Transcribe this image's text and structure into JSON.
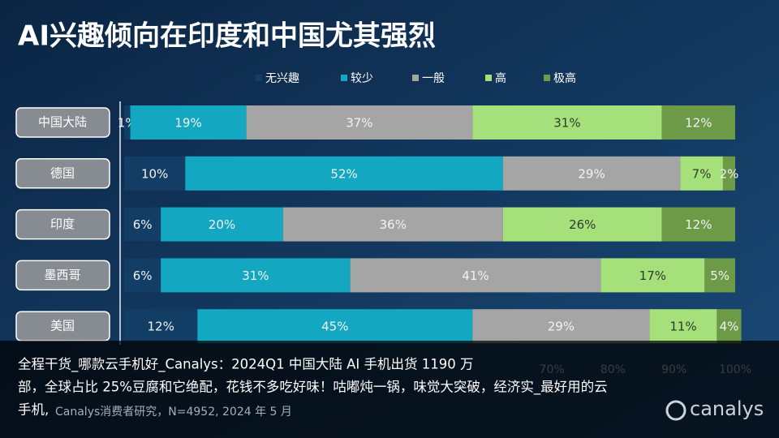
{
  "chart_data": {
    "type": "stacked_barh",
    "title": "AI兴趣倾向在印度和中国尤其强烈",
    "categories": [
      "中国大陆",
      "德国",
      "印度",
      "墨西哥",
      "美国"
    ],
    "series": [
      {
        "name": "无兴趣",
        "color": "#123e66",
        "values": [
          1,
          10,
          6,
          6,
          12
        ],
        "value_labels": [
          "1%",
          "10%",
          "6%",
          "6%",
          "12%"
        ]
      },
      {
        "name": "较少",
        "color": "#14a7c2",
        "values": [
          19,
          52,
          20,
          31,
          45
        ],
        "value_labels": [
          "19%",
          "52%",
          "20%",
          "31%",
          "45%"
        ]
      },
      {
        "name": "一般",
        "color": "#a5a5a5",
        "values": [
          37,
          29,
          36,
          41,
          29
        ],
        "value_labels": [
          "37%",
          "29%",
          "36%",
          "41%",
          "29%"
        ]
      },
      {
        "name": "高",
        "color": "#a6e07a",
        "values": [
          31,
          7,
          26,
          17,
          11
        ],
        "value_labels": [
          "31%",
          "7%",
          "26%",
          "17%",
          "11%"
        ]
      },
      {
        "name": "极高",
        "color": "#6c9a47",
        "values": [
          12,
          2,
          12,
          5,
          4
        ],
        "value_labels": [
          "12%",
          "2%",
          "12%",
          "5%",
          "4%"
        ]
      }
    ],
    "xlim": [
      0,
      100
    ],
    "xticks": [
      {
        "value": 70,
        "label": "70%"
      },
      {
        "value": 80,
        "label": "80%"
      },
      {
        "value": 90,
        "label": "90%"
      },
      {
        "value": 100,
        "label": "100%"
      }
    ],
    "legend": "top",
    "source": "Canalys消费者研究，N=4952, 2024 年 5 月",
    "logo": "canalys"
  },
  "caption": [
    "全程干货_哪款云手机好_Canalys：2024Q1 中国大陆 AI 手机出货 1190 万",
    "部，全球占比 25%豆腐和它绝配，花钱不多吃好味！咕嘟炖一锅，味觉大突破，经济实_最好用的云",
    "手机,"
  ]
}
